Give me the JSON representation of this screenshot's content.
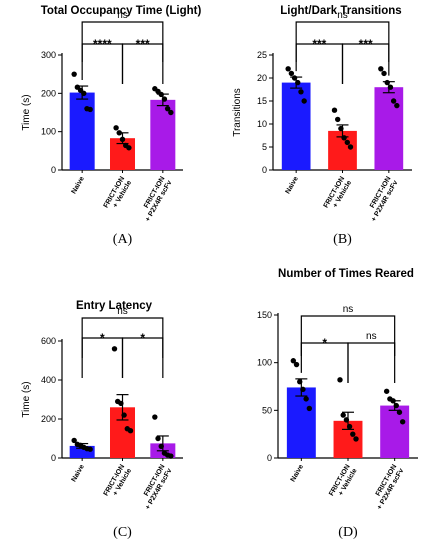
{
  "chart_data": [
    {
      "type": "bar",
      "panel_letter": "(A)",
      "title": "Total  Occupancy Time (Light)",
      "ylabel": "Time  (s)",
      "ylim": [
        0,
        300
      ],
      "yticks": [
        "0",
        "100",
        "200",
        "300"
      ],
      "categories": [
        [
          "Naive"
        ],
        [
          "FRICT-ION",
          "+ Vehicle"
        ],
        [
          "FRICT-ION",
          "+ P2X4R scFv"
        ]
      ],
      "values": [
        202,
        83,
        183
      ],
      "errors": [
        17,
        14,
        15
      ],
      "points": [
        [
          250,
          216,
          208,
          200,
          160,
          158
        ],
        [
          110,
          97,
          80,
          64,
          58
        ],
        [
          212,
          205,
          197,
          185,
          160,
          150
        ]
      ],
      "colors": [
        "#1a1aff",
        "#ff1a1a",
        "#a81ae8"
      ],
      "annotations": [
        {
          "text": "ns",
          "from": 0,
          "to": 2,
          "level": 0
        },
        {
          "text": "****",
          "from": 0,
          "to": 1,
          "level": 1
        },
        {
          "text": "***",
          "from": 1,
          "to": 2,
          "level": 1
        }
      ]
    },
    {
      "type": "bar",
      "panel_letter": "(B)",
      "title": "Light/Dark Transitions",
      "ylabel": "Transitions",
      "ylim": [
        0,
        25
      ],
      "yticks": [
        "0",
        "5",
        "10",
        "15",
        "20",
        "25"
      ],
      "categories": [
        [
          "Naive"
        ],
        [
          "FRICT-ION",
          "+ Vehicle"
        ],
        [
          "FRICT-ION",
          "+ P2X4R scFv"
        ]
      ],
      "values": [
        19,
        8.5,
        18
      ],
      "errors": [
        1.2,
        1.3,
        1.2
      ],
      "points": [
        [
          22,
          21,
          20,
          19,
          17,
          15
        ],
        [
          13,
          11,
          9,
          7,
          6,
          5
        ],
        [
          22,
          21,
          19,
          18,
          15,
          14
        ]
      ],
      "colors": [
        "#1a1aff",
        "#ff1a1a",
        "#a81ae8"
      ],
      "annotations": [
        {
          "text": "ns",
          "from": 0,
          "to": 2,
          "level": 0
        },
        {
          "text": "***",
          "from": 0,
          "to": 1,
          "level": 1
        },
        {
          "text": "***",
          "from": 1,
          "to": 2,
          "level": 1
        }
      ]
    },
    {
      "type": "bar",
      "panel_letter": "(C)",
      "title": "Entry Latency",
      "ylabel": "Time  (s)",
      "ylim": [
        0,
        600
      ],
      "yticks": [
        "0",
        "200",
        "400",
        "600"
      ],
      "categories": [
        [
          "Naive"
        ],
        [
          "FRICT-ION",
          "+ Vehicle"
        ],
        [
          "FRICT-ION",
          "+ P2X4R scFv"
        ]
      ],
      "values": [
        62,
        260,
        75
      ],
      "errors": [
        12,
        65,
        38
      ],
      "points": [
        [
          90,
          70,
          65,
          55,
          48,
          45
        ],
        [
          560,
          290,
          280,
          220,
          150,
          140
        ],
        [
          210,
          100,
          60,
          25,
          15,
          10
        ]
      ],
      "colors": [
        "#1a1aff",
        "#ff1a1a",
        "#a81ae8"
      ],
      "annotations": [
        {
          "text": "ns",
          "from": 0,
          "to": 2,
          "level": 0
        },
        {
          "text": "*",
          "from": 0,
          "to": 1,
          "level": 1
        },
        {
          "text": "*",
          "from": 1,
          "to": 2,
          "level": 1
        }
      ]
    },
    {
      "type": "bar",
      "panel_letter": "(D)",
      "title": "Number of Times Reared",
      "ylabel": "",
      "ylim": [
        0,
        150
      ],
      "yticks": [
        "0",
        "50",
        "100",
        "150"
      ],
      "categories": [
        [
          "Naive"
        ],
        [
          "FRICT-ION",
          "+ Vehicle"
        ],
        [
          "FRICT-ION",
          "+ P2X4R scFv"
        ]
      ],
      "values": [
        74,
        39,
        55
      ],
      "errors": [
        9,
        9,
        5
      ],
      "points": [
        [
          102,
          98,
          80,
          72,
          62,
          52
        ],
        [
          82,
          45,
          40,
          33,
          25,
          20
        ],
        [
          70,
          62,
          60,
          55,
          48,
          38
        ]
      ],
      "colors": [
        "#1a1aff",
        "#ff1a1a",
        "#a81ae8"
      ],
      "annotations": [
        {
          "text": "ns",
          "from": 0,
          "to": 2,
          "level": 0
        },
        {
          "text": "*",
          "from": 0,
          "to": 1,
          "level": 1
        },
        {
          "text": "ns",
          "from": 1,
          "to": 2,
          "level": 1
        }
      ]
    }
  ]
}
